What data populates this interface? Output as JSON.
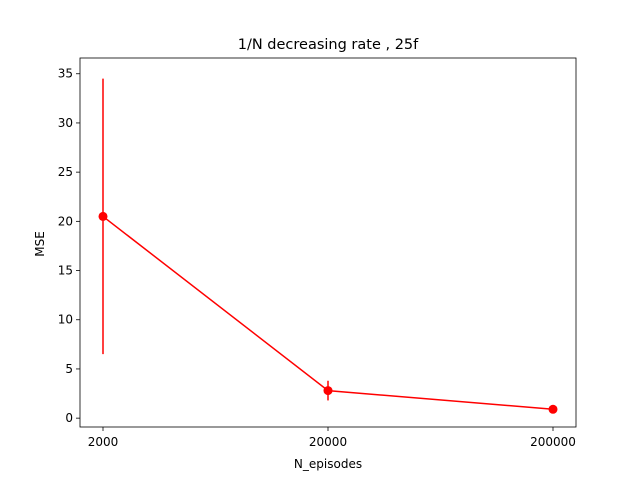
{
  "chart_data": {
    "type": "line",
    "title": "1/N decreasing rate , 25f",
    "xlabel": "N_episodes",
    "ylabel": "MSE",
    "x_categories": [
      "2000",
      "20000",
      "200000"
    ],
    "series": [
      {
        "color": "#ff0000",
        "values": [
          20.5,
          2.8,
          0.9
        ],
        "error": [
          14.0,
          1.0,
          0.2
        ]
      }
    ],
    "yticks": [
      0,
      5,
      10,
      15,
      20,
      25,
      30,
      35
    ],
    "ylim": [
      -0.9,
      36.6
    ],
    "grid": false,
    "legend": "none"
  }
}
